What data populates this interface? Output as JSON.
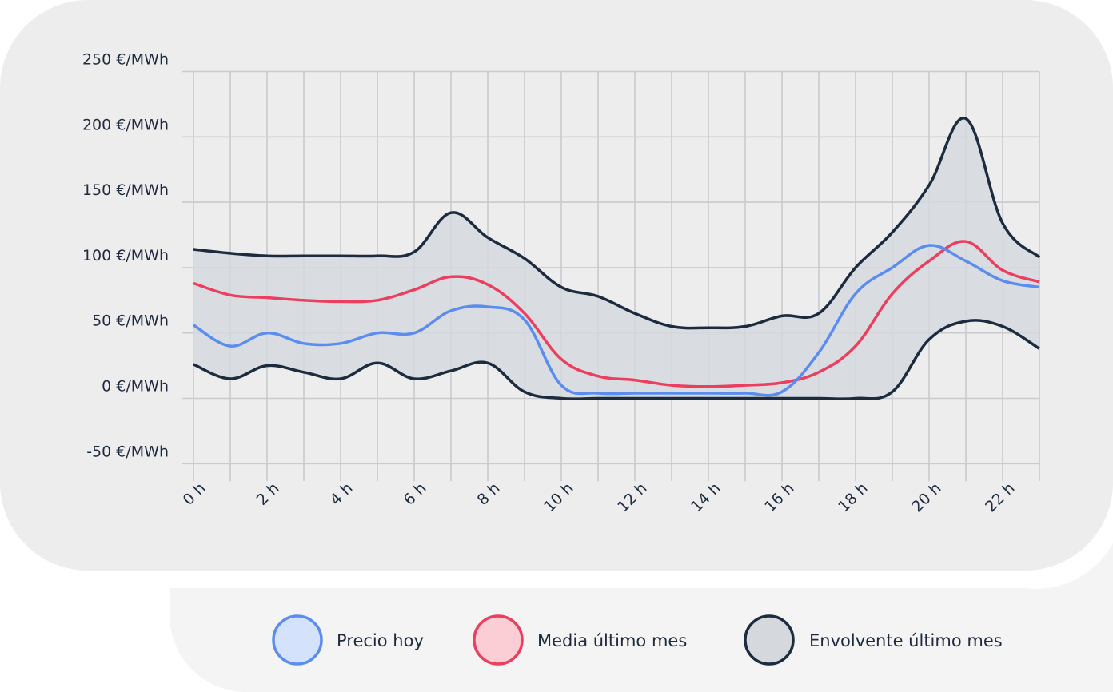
{
  "colors": {
    "panel": "#ededed",
    "legend_panel": "#f4f4f4",
    "grid": "#c9cacd",
    "text": "#1d2b3f",
    "today": "#5b8df0",
    "today_fill": "#d5e2fb",
    "mean": "#ec3e5e",
    "mean_fill": "#fbcdd5",
    "envelope": "#1d2b3f",
    "envelope_fill": "#d5d8dd"
  },
  "chart_data": {
    "type": "line",
    "xlim": [
      0,
      23
    ],
    "ylim": [
      -50,
      250
    ],
    "y_ticks": [
      250,
      200,
      150,
      100,
      50,
      0,
      -50
    ],
    "y_tick_labels": [
      "250 €/MWh",
      "200 €/MWh",
      "150 €/MWh",
      "100 €/MWh",
      "50 €/MWh",
      "0 €/MWh",
      "-50 €/MWh"
    ],
    "x_ticks": [
      0,
      2,
      4,
      6,
      8,
      10,
      12,
      14,
      16,
      18,
      20,
      22
    ],
    "x_tick_labels": [
      "0 h",
      "2 h",
      "4 h",
      "6 h",
      "8 h",
      "10 h",
      "12 h",
      "14 h",
      "16 h",
      "18 h",
      "20 h",
      "22 h"
    ],
    "grid": true,
    "legend_position": "bottom",
    "series": [
      {
        "name": "Precio hoy",
        "role": "today",
        "x": [
          0,
          1,
          2,
          3,
          4,
          5,
          6,
          7,
          8,
          9,
          10,
          11,
          12,
          13,
          14,
          15,
          16,
          17,
          18,
          19,
          20,
          21,
          22,
          23
        ],
        "values": [
          56,
          40,
          50,
          42,
          42,
          50,
          50,
          67,
          70,
          60,
          10,
          4,
          4,
          4,
          4,
          4,
          5,
          35,
          80,
          100,
          117,
          105,
          90,
          85
        ]
      },
      {
        "name": "Media último mes",
        "role": "mean",
        "x": [
          0,
          1,
          2,
          3,
          4,
          5,
          6,
          7,
          8,
          9,
          10,
          11,
          12,
          13,
          14,
          15,
          16,
          17,
          18,
          19,
          20,
          21,
          22,
          23
        ],
        "values": [
          88,
          79,
          77,
          75,
          74,
          75,
          83,
          93,
          87,
          65,
          30,
          17,
          14,
          10,
          9,
          10,
          12,
          20,
          40,
          80,
          105,
          120,
          98,
          89
        ]
      },
      {
        "name": "Envolvente último mes",
        "role": "envelope",
        "x": [
          0,
          1,
          2,
          3,
          4,
          5,
          6,
          7,
          8,
          9,
          10,
          11,
          12,
          13,
          14,
          15,
          16,
          17,
          18,
          19,
          20,
          21,
          22,
          23
        ],
        "upper": [
          114,
          111,
          109,
          109,
          109,
          109,
          112,
          142,
          123,
          107,
          85,
          78,
          65,
          55,
          54,
          55,
          63,
          65,
          100,
          127,
          163,
          214,
          134,
          108
        ],
        "lower": [
          26,
          15,
          25,
          20,
          15,
          27,
          15,
          21,
          27,
          5,
          0,
          0,
          0,
          0,
          0,
          0,
          0,
          0,
          0,
          5,
          45,
          59,
          55,
          38
        ]
      }
    ]
  }
}
